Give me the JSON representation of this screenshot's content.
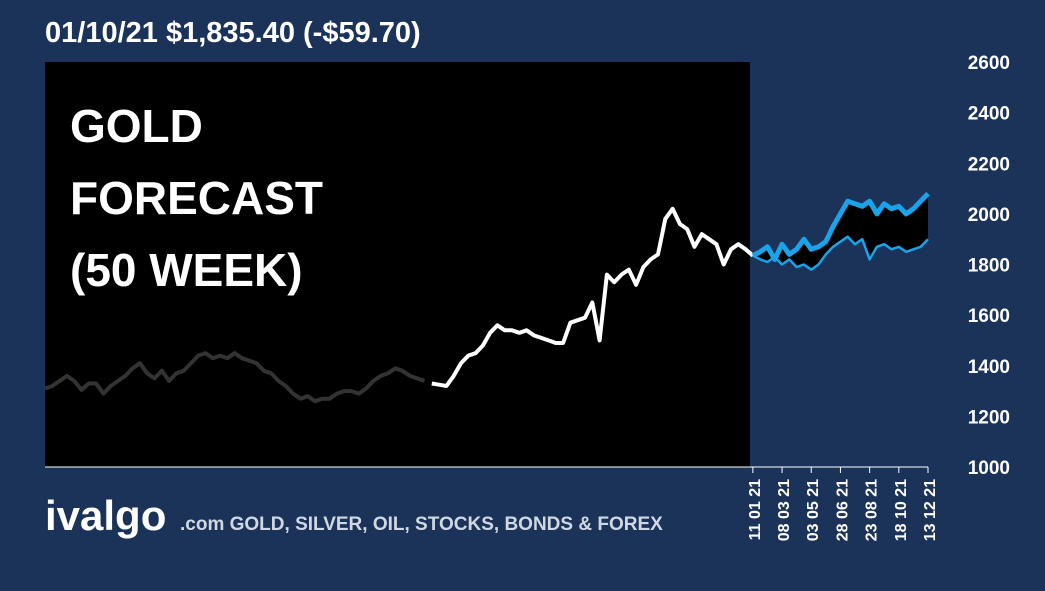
{
  "chart_data": {
    "type": "line",
    "title": "01/10/21 $1,835.40 (-$59.70)",
    "annotation": [
      "GOLD",
      "FORECAST",
      "(50 WEEK)"
    ],
    "footer": {
      "brand": "ivalgo",
      "tagline": ".com GOLD, SILVER, OIL, STOCKS, BONDS & FOREX"
    },
    "xlim": [
      0,
      121
    ],
    "xticks": [
      {
        "value": 97,
        "label": "11 01 21"
      },
      {
        "value": 101,
        "label": "08 03 21"
      },
      {
        "value": 105,
        "label": "03 05 21"
      },
      {
        "value": 109,
        "label": "28 06 21"
      },
      {
        "value": 113,
        "label": "23 08 21"
      },
      {
        "value": 117,
        "label": "18 10 21"
      },
      {
        "value": 121,
        "label": "13 12 21"
      }
    ],
    "ylim": [
      1000,
      2600
    ],
    "yticks": [
      1000,
      1200,
      1400,
      1600,
      1800,
      2000,
      2200,
      2400,
      2600
    ],
    "grid": false,
    "series": [
      {
        "color": "#333333",
        "values": [
          1310,
          1320,
          1340,
          1360,
          1340,
          1305,
          1330,
          1330,
          1290,
          1320,
          1340,
          1360,
          1390,
          1410,
          1370,
          1350,
          1380,
          1340,
          1370,
          1380,
          1410,
          1440,
          1450,
          1430,
          1440,
          1430,
          1450,
          1430,
          1420,
          1410,
          1380,
          1370,
          1340,
          1320,
          1290,
          1270,
          1280,
          1260,
          1270,
          1270,
          1290,
          1300,
          1300,
          1290,
          1310,
          1340,
          1360,
          1370,
          1390,
          1380,
          1360,
          1350,
          1340,
          null,
          null,
          null,
          null,
          null,
          null,
          null,
          null,
          null,
          null,
          null,
          null,
          null,
          null,
          null,
          null,
          null,
          null,
          null,
          null,
          null,
          null,
          null,
          null,
          null,
          null,
          null,
          null,
          null,
          null,
          null,
          null,
          null,
          null,
          null,
          null,
          null,
          null,
          null,
          null,
          null,
          null,
          null,
          null,
          null,
          null,
          null,
          null,
          null,
          null,
          null,
          null,
          null,
          null,
          null,
          null,
          null,
          null,
          null,
          null,
          null,
          null,
          null,
          null,
          null,
          null,
          null
        ]
      },
      {
        "color": "#ffffff",
        "values": [
          null,
          null,
          null,
          null,
          null,
          null,
          null,
          null,
          null,
          null,
          null,
          null,
          null,
          null,
          null,
          null,
          null,
          null,
          null,
          null,
          null,
          null,
          null,
          null,
          null,
          null,
          null,
          null,
          null,
          null,
          null,
          null,
          null,
          null,
          null,
          null,
          null,
          null,
          null,
          null,
          null,
          null,
          null,
          null,
          null,
          null,
          null,
          null,
          null,
          null,
          null,
          null,
          null,
          1330,
          1325,
          1320,
          1360,
          1410,
          1440,
          1450,
          1480,
          1530,
          1560,
          1540,
          1540,
          1530,
          1540,
          1520,
          1510,
          1500,
          1490,
          1490,
          1570,
          1580,
          1590,
          1650,
          1500,
          1760,
          1730,
          1760,
          1780,
          1720,
          1790,
          1820,
          1840,
          1980,
          2020,
          1960,
          1940,
          1870,
          1920,
          1900,
          1880,
          1800,
          1860,
          1880,
          1860,
          1835,
          null,
          null,
          null,
          null,
          null,
          null,
          null,
          null,
          null,
          null,
          null,
          null,
          null,
          null,
          null,
          null,
          null,
          null,
          null,
          null,
          null,
          null,
          null,
          null
        ]
      },
      {
        "color": "#1aa3e8",
        "width": 5,
        "values": [
          null,
          null,
          null,
          null,
          null,
          null,
          null,
          null,
          null,
          null,
          null,
          null,
          null,
          null,
          null,
          null,
          null,
          null,
          null,
          null,
          null,
          null,
          null,
          null,
          null,
          null,
          null,
          null,
          null,
          null,
          null,
          null,
          null,
          null,
          null,
          null,
          null,
          null,
          null,
          null,
          null,
          null,
          null,
          null,
          null,
          null,
          null,
          null,
          null,
          null,
          null,
          null,
          null,
          null,
          null,
          null,
          null,
          null,
          null,
          null,
          null,
          null,
          null,
          null,
          null,
          null,
          null,
          null,
          null,
          null,
          null,
          null,
          null,
          null,
          null,
          null,
          null,
          null,
          null,
          null,
          null,
          null,
          null,
          null,
          null,
          null,
          null,
          null,
          null,
          null,
          null,
          null,
          null,
          null,
          null,
          null,
          null,
          1835,
          1850,
          1870,
          1820,
          1880,
          1840,
          1860,
          1900,
          1860,
          1870,
          1890,
          1950,
          2000,
          2050,
          2040,
          2030,
          2050,
          2000,
          2040,
          2020,
          2030,
          2000,
          2020,
          2050,
          2080
        ]
      },
      {
        "color": "#1aa3e8",
        "width": 2.5,
        "values": [
          null,
          null,
          null,
          null,
          null,
          null,
          null,
          null,
          null,
          null,
          null,
          null,
          null,
          null,
          null,
          null,
          null,
          null,
          null,
          null,
          null,
          null,
          null,
          null,
          null,
          null,
          null,
          null,
          null,
          null,
          null,
          null,
          null,
          null,
          null,
          null,
          null,
          null,
          null,
          null,
          null,
          null,
          null,
          null,
          null,
          null,
          null,
          null,
          null,
          null,
          null,
          null,
          null,
          null,
          null,
          null,
          null,
          null,
          null,
          null,
          null,
          null,
          null,
          null,
          null,
          null,
          null,
          null,
          null,
          null,
          null,
          null,
          null,
          null,
          null,
          null,
          null,
          null,
          null,
          null,
          null,
          null,
          null,
          null,
          null,
          null,
          null,
          null,
          null,
          null,
          null,
          null,
          null,
          null,
          null,
          null,
          null,
          1835,
          1820,
          1810,
          1830,
          1800,
          1820,
          1790,
          1800,
          1780,
          1800,
          1840,
          1870,
          1890,
          1910,
          1880,
          1900,
          1820,
          1870,
          1880,
          1860,
          1870,
          1850,
          1860,
          1870,
          1900
        ]
      }
    ]
  }
}
